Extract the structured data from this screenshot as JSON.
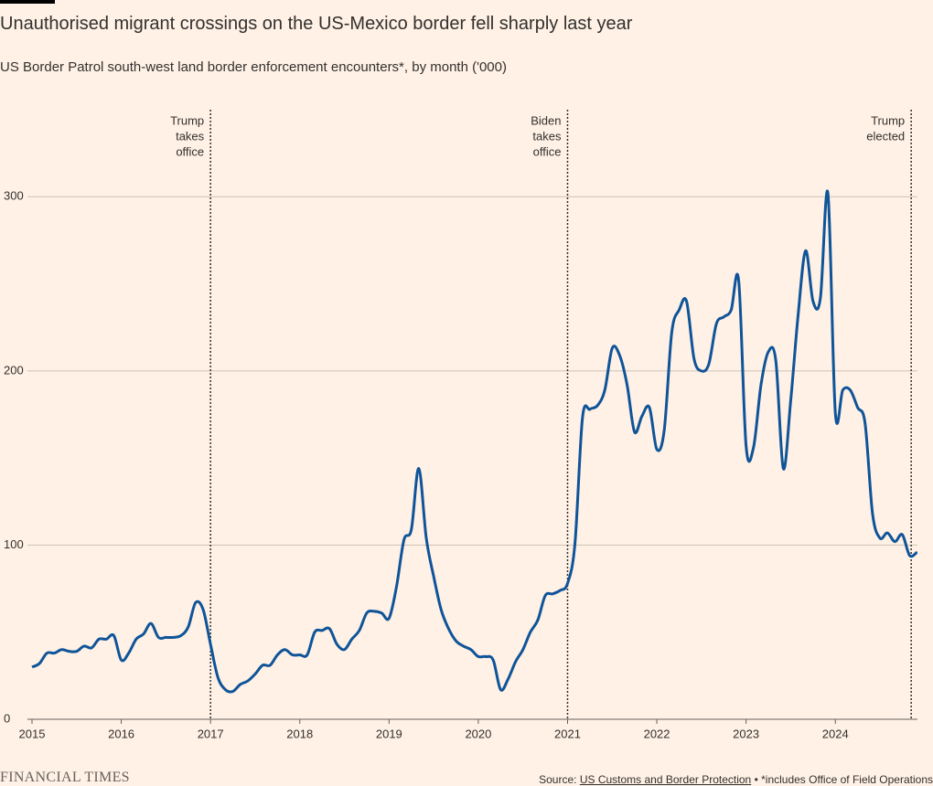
{
  "chart_data": {
    "type": "line",
    "title": "Unauthorised migrant crossings on the US-Mexico border fell sharply last year",
    "subtitle": "US Border Patrol south-west land border enforcement encounters*, by month ('000)",
    "x": [
      2015,
      2015.083,
      2015.167,
      2015.25,
      2015.333,
      2015.417,
      2015.5,
      2015.583,
      2015.667,
      2015.75,
      2015.833,
      2015.917,
      2016,
      2016.083,
      2016.167,
      2016.25,
      2016.333,
      2016.417,
      2016.5,
      2016.583,
      2016.667,
      2016.75,
      2016.833,
      2016.917,
      2017,
      2017.083,
      2017.167,
      2017.25,
      2017.333,
      2017.417,
      2017.5,
      2017.583,
      2017.667,
      2017.75,
      2017.833,
      2017.917,
      2018,
      2018.083,
      2018.167,
      2018.25,
      2018.333,
      2018.417,
      2018.5,
      2018.583,
      2018.667,
      2018.75,
      2018.833,
      2018.917,
      2019,
      2019.083,
      2019.167,
      2019.25,
      2019.333,
      2019.417,
      2019.5,
      2019.583,
      2019.667,
      2019.75,
      2019.833,
      2019.917,
      2020,
      2020.083,
      2020.167,
      2020.25,
      2020.333,
      2020.417,
      2020.5,
      2020.583,
      2020.667,
      2020.75,
      2020.833,
      2020.917,
      2021,
      2021.083,
      2021.167,
      2021.25,
      2021.333,
      2021.417,
      2021.5,
      2021.583,
      2021.667,
      2021.75,
      2021.833,
      2021.917,
      2022,
      2022.083,
      2022.167,
      2022.25,
      2022.333,
      2022.417,
      2022.5,
      2022.583,
      2022.667,
      2022.75,
      2022.833,
      2022.917,
      2023,
      2023.083,
      2023.167,
      2023.25,
      2023.333,
      2023.417,
      2023.5,
      2023.583,
      2023.667,
      2023.75,
      2023.833,
      2023.917,
      2024,
      2024.083,
      2024.167,
      2024.25,
      2024.333,
      2024.417,
      2024.5,
      2024.583,
      2024.667,
      2024.75,
      2024.833,
      2024.917
    ],
    "series": [
      {
        "color": "#0f5499",
        "values": [
          30,
          32,
          38,
          38,
          40,
          39,
          39,
          42,
          41,
          46,
          46,
          48,
          34,
          38,
          46,
          49,
          55,
          47,
          47,
          47,
          48,
          53,
          67,
          63,
          43,
          24,
          17,
          16,
          20,
          22,
          26,
          31,
          31,
          37,
          40,
          37,
          37,
          37,
          50,
          51,
          52,
          43,
          40,
          46,
          51,
          61,
          62,
          61,
          58,
          76,
          103,
          109,
          144,
          104,
          82,
          63,
          52,
          45,
          42,
          40,
          36,
          36,
          34,
          17,
          23,
          33,
          40,
          50,
          57,
          71,
          72,
          74,
          78,
          101,
          173,
          178,
          180,
          189,
          213,
          209,
          192,
          165,
          174,
          179,
          155,
          166,
          222,
          235,
          240,
          207,
          200,
          204,
          227,
          231,
          235,
          252,
          157,
          156,
          192,
          211,
          206,
          144,
          183,
          232,
          269,
          240,
          242,
          302,
          176,
          189,
          189,
          179,
          170,
          118,
          104,
          107,
          102,
          106,
          94,
          96
        ]
      }
    ],
    "xlim": [
      2015,
      2024.92
    ],
    "xticks": [
      2015,
      2016,
      2017,
      2018,
      2019,
      2020,
      2021,
      2022,
      2023,
      2024
    ],
    "ylim": [
      0,
      350
    ],
    "yticks": [
      0,
      100,
      200,
      300
    ],
    "grid": true,
    "annotations": [
      {
        "x": 2017,
        "lines": [
          "Trump",
          "takes",
          "office"
        ]
      },
      {
        "x": 2021,
        "lines": [
          "Biden",
          "takes",
          "office"
        ]
      },
      {
        "x": 2024.85,
        "lines": [
          "Trump",
          "elected"
        ]
      }
    ],
    "footer": {
      "brand": "FINANCIAL TIMES",
      "source_prefix": "Source:",
      "source_link": "US Customs and Border Protection",
      "note": "• *includes Office of Field Operations"
    }
  }
}
